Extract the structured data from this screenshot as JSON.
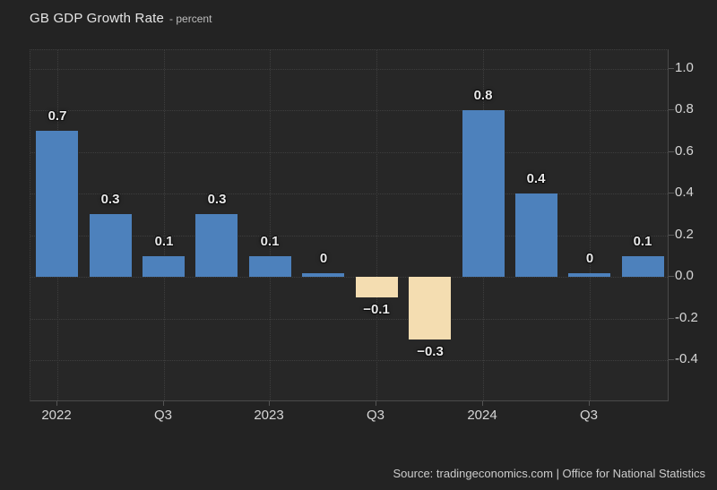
{
  "header": {
    "title": "GB GDP Growth Rate",
    "subtitle": "- percent"
  },
  "footer": {
    "source": "Source: tradingeconomics.com | Office for National Statistics"
  },
  "colors": {
    "background": "#232323",
    "plot_background": "#272727",
    "bar_positive": "#4d81bc",
    "bar_negative": "#f4ddb1",
    "grid": "#3e3e3e",
    "axis_line": "#4a4a4a",
    "tick": "#555555",
    "axis_text": "#d6d6d6",
    "value_label": "#e9e9e9",
    "title": "#e5e5e5",
    "subtitle": "#bdbdbd",
    "source_text": "#cccccc"
  },
  "chart_data": {
    "type": "bar",
    "title": "GB GDP Growth Rate",
    "ylabel": "percent",
    "ylim": [
      -0.6,
      1.09
    ],
    "grid": "dotted",
    "legend": "none",
    "yticks": [
      {
        "value": 1.0,
        "label": "1.0"
      },
      {
        "value": 0.8,
        "label": "0.8"
      },
      {
        "value": 0.6,
        "label": "0.6"
      },
      {
        "value": 0.4,
        "label": "0.4"
      },
      {
        "value": 0.2,
        "label": "0.2"
      },
      {
        "value": 0.0,
        "label": "0.0"
      },
      {
        "value": -0.2,
        "label": "-0.2"
      },
      {
        "value": -0.4,
        "label": "-0.4"
      }
    ],
    "bars": [
      {
        "value": 0.7,
        "label": "0.7",
        "axis_label": "2022"
      },
      {
        "value": 0.3,
        "label": "0.3"
      },
      {
        "value": 0.1,
        "label": "0.1",
        "axis_label": "Q3"
      },
      {
        "value": 0.3,
        "label": "0.3"
      },
      {
        "value": 0.1,
        "label": "0.1",
        "axis_label": "2023"
      },
      {
        "value": 0.0,
        "label": "0"
      },
      {
        "value": -0.1,
        "label": "−0.1",
        "axis_label": "Q3"
      },
      {
        "value": -0.3,
        "label": "−0.3"
      },
      {
        "value": 0.8,
        "label": "0.8",
        "axis_label": "2024"
      },
      {
        "value": 0.4,
        "label": "0.4"
      },
      {
        "value": 0.0,
        "label": "0",
        "axis_label": "Q3"
      },
      {
        "value": 0.1,
        "label": "0.1"
      }
    ]
  }
}
